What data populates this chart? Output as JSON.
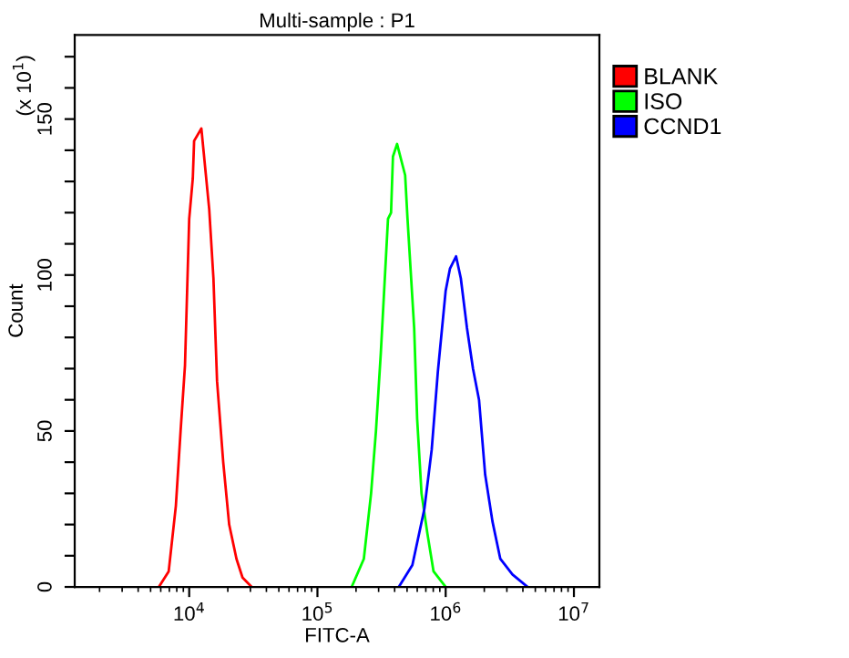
{
  "chart_data": {
    "type": "line",
    "title": "Multi-sample : P1",
    "xlabel": "FITC-A",
    "ylabel": "Count",
    "annotations": [
      "(x 10$^{1}$)"
    ],
    "log": "x",
    "xlim": [
      1280,
      15800000
    ],
    "xticks": [
      {
        "value": 10000,
        "label": "10$^{4}$"
      },
      {
        "value": 100000,
        "label": "10$^{5}$"
      },
      {
        "value": 1000000,
        "label": "10$^{6}$"
      },
      {
        "value": 10000000,
        "label": "10$^{7}$"
      }
    ],
    "ylim": [
      0,
      177
    ],
    "yticks": [
      0,
      {
        "value": 10,
        "label": null
      },
      {
        "value": 20,
        "label": null
      },
      {
        "value": 30,
        "label": null
      },
      {
        "value": 40,
        "label": null
      },
      50,
      {
        "value": 60,
        "label": null
      },
      {
        "value": 70,
        "label": null
      },
      {
        "value": 80,
        "label": null
      },
      {
        "value": 90,
        "label": null
      },
      100,
      {
        "value": 110,
        "label": null
      },
      {
        "value": 120,
        "label": null
      },
      {
        "value": 130,
        "label": null
      },
      {
        "value": 140,
        "label": null
      },
      150,
      {
        "value": 160,
        "label": null
      },
      {
        "value": 170,
        "label": null
      }
    ],
    "grid": false,
    "legend": "right",
    "marker": "none",
    "line_style": "solid",
    "series": [
      {
        "name": "BLANK",
        "color": "#ff0000",
        "x": [
          5800,
          6920,
          7870,
          8570,
          9270,
          10000,
          10670,
          10920,
          12440,
          14330,
          15450,
          16490,
          18420,
          20500,
          23370,
          26050,
          30690
        ],
        "values": [
          0,
          5,
          26,
          50,
          71,
          118,
          131,
          143,
          147,
          121,
          99,
          66,
          40,
          20,
          9,
          3,
          0
        ]
      },
      {
        "name": "ISO",
        "color": "#00ff00",
        "x": [
          184900,
          230000,
          262000,
          286000,
          312000,
          355000,
          375000,
          388000,
          418000,
          483000,
          504000,
          568000,
          599000,
          648000,
          721000,
          804000,
          1000000
        ],
        "values": [
          0,
          9,
          30,
          50,
          75,
          118,
          120,
          138,
          142,
          132,
          118,
          83,
          54,
          30,
          17,
          5,
          0
        ]
      },
      {
        "name": "CCND1",
        "color": "#0000ff",
        "x": [
          431000,
          550000,
          682000,
          778000,
          869000,
          1000000,
          1079000,
          1205000,
          1312000,
          1466000,
          1633000,
          1820000,
          2032000,
          2316000,
          2667000,
          3318000,
          4347000
        ],
        "values": [
          0,
          7,
          25,
          44,
          69,
          95,
          102,
          106,
          99,
          83,
          70,
          60,
          36,
          21,
          9,
          4,
          0
        ]
      }
    ]
  }
}
